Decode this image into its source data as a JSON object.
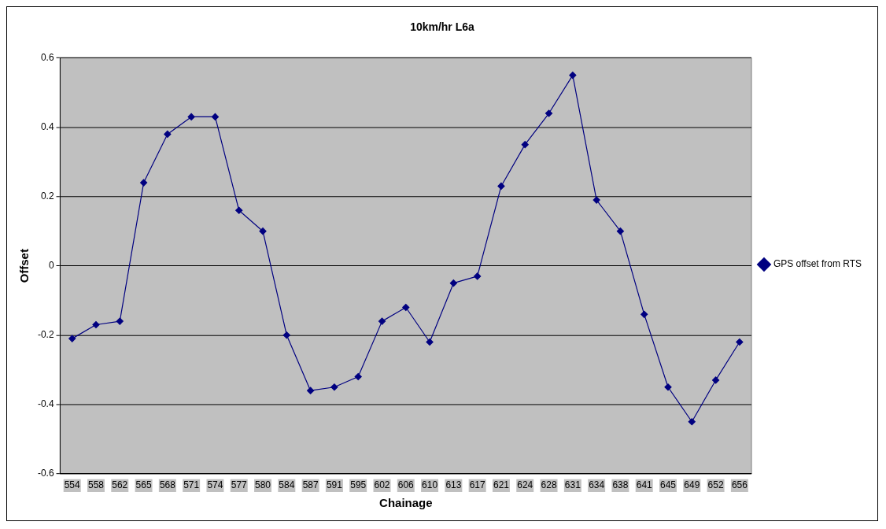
{
  "chart_data": {
    "type": "line",
    "title": "10km/hr L6a",
    "xlabel": "Chainage",
    "ylabel": "Offset",
    "categories": [
      "554",
      "558",
      "562",
      "565",
      "568",
      "571",
      "574",
      "577",
      "580",
      "584",
      "587",
      "591",
      "595",
      "602",
      "606",
      "610",
      "613",
      "617",
      "621",
      "624",
      "628",
      "631",
      "634",
      "638",
      "641",
      "645",
      "649",
      "652",
      "656"
    ],
    "series": [
      {
        "name": "GPS offset from RTS",
        "color": "#000080",
        "values": [
          -0.21,
          -0.17,
          -0.16,
          0.24,
          0.38,
          0.43,
          0.43,
          0.16,
          0.1,
          -0.2,
          -0.36,
          -0.35,
          -0.32,
          -0.16,
          -0.12,
          -0.22,
          -0.05,
          -0.03,
          0.23,
          0.35,
          0.44,
          0.55,
          0.19,
          0.1,
          -0.14,
          -0.35,
          -0.45,
          -0.33,
          -0.22
        ]
      }
    ],
    "ylim": [
      -0.6,
      0.6
    ],
    "yticks": [
      -0.6,
      -0.4,
      -0.2,
      0,
      0.2,
      0.4,
      0.6
    ],
    "grid": "y",
    "legend": "right",
    "marker": "diamond",
    "line_style": "solid"
  }
}
